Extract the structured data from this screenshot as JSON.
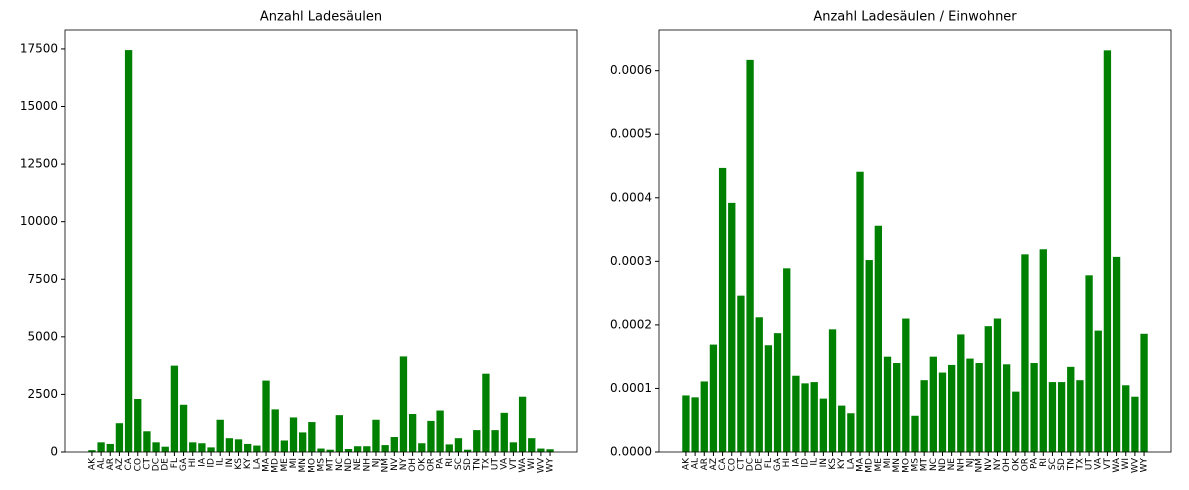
{
  "chart_data": [
    {
      "type": "bar",
      "title": "Anzahl Ladesäulen",
      "color": "#008000",
      "categories": [
        "AK",
        "AL",
        "AR",
        "AZ",
        "CA",
        "CO",
        "CT",
        "DC",
        "DE",
        "FL",
        "GA",
        "HI",
        "IA",
        "ID",
        "IL",
        "IN",
        "KS",
        "KY",
        "LA",
        "MA",
        "MD",
        "ME",
        "MI",
        "MN",
        "MO",
        "MS",
        "MT",
        "NC",
        "ND",
        "NE",
        "NH",
        "NJ",
        "NM",
        "NV",
        "NY",
        "OH",
        "OK",
        "OR",
        "PA",
        "RI",
        "SC",
        "SD",
        "TN",
        "TX",
        "UT",
        "VA",
        "VT",
        "WA",
        "WI",
        "WV",
        "WY"
      ],
      "values": [
        80,
        420,
        350,
        1250,
        17450,
        2300,
        900,
        420,
        230,
        3750,
        2050,
        420,
        380,
        200,
        1400,
        600,
        550,
        350,
        280,
        3100,
        1850,
        500,
        1500,
        850,
        1300,
        150,
        100,
        1600,
        130,
        250,
        250,
        1400,
        300,
        650,
        4150,
        1650,
        380,
        1350,
        1800,
        330,
        600,
        100,
        950,
        3400,
        950,
        1700,
        420,
        2400,
        600,
        150,
        120
      ],
      "ylim": [
        0,
        18322
      ],
      "yticks": [
        0,
        2500,
        5000,
        7500,
        10000,
        12500,
        15000,
        17500
      ]
    },
    {
      "type": "bar",
      "title": "Anzahl Ladesäulen / Einwohner",
      "color": "#008000",
      "categories": [
        "AK",
        "AL",
        "AR",
        "AZ",
        "CA",
        "CO",
        "CT",
        "DC",
        "DE",
        "FL",
        "GA",
        "HI",
        "IA",
        "ID",
        "IL",
        "IN",
        "KS",
        "KY",
        "LA",
        "MA",
        "MD",
        "ME",
        "MI",
        "MN",
        "MO",
        "MS",
        "MT",
        "NC",
        "ND",
        "NE",
        "NH",
        "NJ",
        "NM",
        "NV",
        "NY",
        "OH",
        "OK",
        "OR",
        "PA",
        "RI",
        "SC",
        "SD",
        "TN",
        "TX",
        "UT",
        "VA",
        "VT",
        "WA",
        "WI",
        "WV",
        "WY"
      ],
      "values": [
        8.9e-05,
        8.6e-05,
        0.000111,
        0.000169,
        0.000447,
        0.000392,
        0.000246,
        0.000617,
        0.000212,
        0.000168,
        0.000187,
        0.000289,
        0.00012,
        0.000108,
        0.00011,
        8.4e-05,
        0.000193,
        7.3e-05,
        6.1e-05,
        0.000441,
        0.000302,
        0.000356,
        0.00015,
        0.00014,
        0.00021,
        5.7e-05,
        0.000113,
        0.00015,
        0.000125,
        0.000137,
        0.000185,
        0.000147,
        0.00014,
        0.000198,
        0.00021,
        0.000138,
        9.5e-05,
        0.000311,
        0.00014,
        0.000319,
        0.00011,
        0.00011,
        0.000134,
        0.000113,
        0.000278,
        0.000191,
        0.000632,
        0.000307,
        0.000105,
        8.7e-05,
        0.000186
      ],
      "ylim": [
        0,
        0.000664
      ],
      "yticks": [
        {
          "value": 0,
          "label": "0.0000"
        },
        {
          "value": 0.0001,
          "label": "0.0001"
        },
        {
          "value": 0.0002,
          "label": "0.0002"
        },
        {
          "value": 0.0003,
          "label": "0.0003"
        },
        {
          "value": 0.0004,
          "label": "0.0004"
        },
        {
          "value": 0.0005,
          "label": "0.0005"
        },
        {
          "value": 0.0006,
          "label": "0.0006"
        }
      ]
    }
  ]
}
